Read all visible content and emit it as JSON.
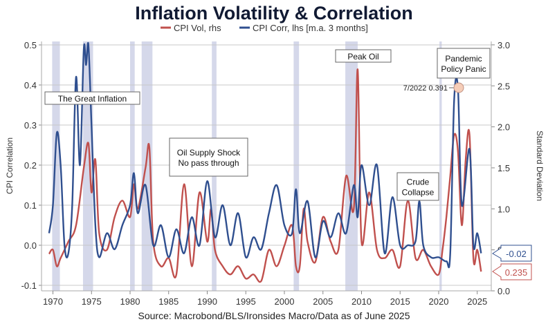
{
  "chart_data": {
    "type": "line",
    "title": "Inflation Volatility & Correlation",
    "source": "Source: Macrobond/BLS/Ironsides Macro/Data as of June 2025",
    "ylabel_left": "CPI Correlation",
    "ylabel_right": "Standard Deviation",
    "ylim_left": [
      -0.1,
      0.5
    ],
    "ylim_right": [
      0.0,
      3.0
    ],
    "xlim": [
      1969,
      2026
    ],
    "x_ticks": [
      "1970",
      "1975",
      "1980",
      "1985",
      "1990",
      "1995",
      "2000",
      "2005",
      "2010",
      "2015",
      "2020",
      "2025"
    ],
    "y_ticks_left": [
      "-0.1",
      "0.0",
      "0.1",
      "0.2",
      "0.3",
      "0.4",
      "0.5"
    ],
    "y_ticks_right": [
      "0.0",
      "0.5",
      "1.0",
      "1.5",
      "2.0",
      "2.5",
      "3.0"
    ],
    "grid": true,
    "legend_position": "top-center",
    "colors": {
      "vol": "#c0504d",
      "corr": "#2f4f8f",
      "recession": "#d5d8ea"
    },
    "recessions": [
      [
        1969.9,
        1970.9
      ],
      [
        1973.9,
        1975.2
      ],
      [
        1980.0,
        1980.6
      ],
      [
        1981.5,
        1982.9
      ],
      [
        1990.6,
        1991.2
      ],
      [
        2001.2,
        2001.9
      ],
      [
        2007.9,
        2009.5
      ],
      [
        2020.1,
        2020.4
      ]
    ],
    "series": [
      {
        "name": "CPI Corr, lhs [m.a. 3 months]",
        "axis": "left",
        "x": [
          1969.5,
          1970,
          1970.5,
          1971,
          1971.5,
          1972,
          1972.5,
          1973,
          1973.5,
          1974,
          1974.3,
          1974.6,
          1975,
          1975.5,
          1976,
          1977,
          1978,
          1979,
          1980,
          1980.5,
          1981,
          1982,
          1983,
          1984,
          1985,
          1986,
          1987,
          1988,
          1989,
          1990,
          1991,
          1992,
          1993,
          1994,
          1995,
          1996,
          1997,
          1998,
          1999,
          2000,
          2001,
          2001.5,
          2002,
          2003,
          2004,
          2005,
          2006,
          2007,
          2008,
          2009,
          2009.5,
          2010,
          2011,
          2012,
          2013,
          2014,
          2015,
          2016,
          2017,
          2017.5,
          2018,
          2019,
          2020,
          2021,
          2021.5,
          2022,
          2022.5,
          2023,
          2024,
          2024.5,
          2025,
          2025.5
        ],
        "values": [
          0.03,
          0.1,
          0.28,
          0.2,
          0.0,
          -0.02,
          0.1,
          0.42,
          0.2,
          0.49,
          0.45,
          0.5,
          0.3,
          0.05,
          -0.03,
          0.03,
          -0.01,
          0.05,
          0.1,
          0.18,
          0.08,
          0.15,
          0.0,
          0.05,
          -0.03,
          0.04,
          -0.02,
          0.07,
          0.0,
          0.16,
          0.02,
          0.1,
          0.0,
          0.08,
          -0.03,
          0.02,
          -0.01,
          0.08,
          0.15,
          0.05,
          0.03,
          0.14,
          0.03,
          0.11,
          -0.03,
          0.06,
          0.02,
          0.08,
          0.03,
          0.15,
          0.07,
          0.2,
          0.1,
          0.2,
          -0.02,
          0.12,
          0.0,
          0.0,
          0.01,
          0.11,
          0.0,
          -0.03,
          -0.03,
          -0.04,
          -0.02,
          0.36,
          0.391,
          0.1,
          0.24,
          0.0,
          0.03,
          -0.02
        ]
      },
      {
        "name": "CPI Vol, rhs",
        "axis": "right",
        "x": [
          1969.5,
          1970,
          1970.5,
          1971,
          1972,
          1973,
          1974,
          1974.6,
          1975,
          1975.5,
          1976,
          1977,
          1978,
          1979,
          1980,
          1980.5,
          1981,
          1982,
          1982.5,
          1983,
          1984,
          1985,
          1986,
          1987,
          1988,
          1989,
          1990,
          1990.5,
          1991,
          1992,
          1993,
          1994,
          1995,
          1996,
          1997,
          1998,
          1999,
          2000,
          2001,
          2001.5,
          2002,
          2002.5,
          2003,
          2004,
          2005,
          2006,
          2007,
          2008,
          2009,
          2009.5,
          2010,
          2011,
          2012,
          2013,
          2014,
          2015,
          2016,
          2017,
          2018,
          2019,
          2020,
          2020.5,
          2021,
          2021.5,
          2022,
          2022.5,
          2023,
          2023.5,
          2024,
          2024.5,
          2025,
          2025.5
        ],
        "values": [
          0.45,
          0.5,
          0.3,
          0.4,
          0.6,
          0.8,
          1.5,
          1.8,
          1.2,
          1.6,
          0.7,
          0.5,
          0.9,
          1.1,
          0.9,
          1.3,
          1.0,
          1.5,
          1.75,
          0.6,
          0.3,
          0.4,
          0.2,
          1.3,
          0.3,
          1.2,
          0.6,
          1.0,
          0.5,
          0.3,
          0.2,
          0.3,
          0.15,
          0.2,
          0.12,
          0.5,
          0.3,
          0.55,
          0.8,
          0.3,
          0.3,
          1.0,
          0.6,
          0.35,
          0.9,
          0.6,
          0.5,
          1.4,
          1.0,
          2.7,
          0.6,
          1.2,
          0.5,
          0.4,
          0.5,
          0.3,
          1.1,
          0.4,
          0.5,
          0.3,
          0.2,
          0.5,
          0.9,
          1.4,
          1.9,
          1.7,
          0.8,
          1.6,
          1.9,
          0.4,
          0.5,
          0.235
        ]
      }
    ],
    "legend": [
      "CPI Vol, rhs",
      "CPI Corr, lhs [m.a. 3 months]"
    ],
    "annotations": {
      "great_inflation": "The Great Inflation",
      "oil_shock_1": "Oil Supply Shock",
      "oil_shock_2": "No pass through",
      "peak_oil": "Peak Oil",
      "crude_1": "Crude",
      "crude_2": "Collapse",
      "pandemic_1": "Pandemic",
      "pandemic_2": "Policy Panic",
      "peak_label": "7/2022 0.391",
      "last_corr": "-0.02",
      "last_vol": "0.235"
    }
  }
}
